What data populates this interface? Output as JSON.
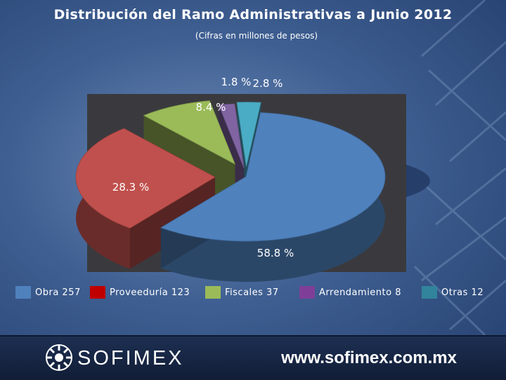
{
  "title": "Distribución del Ramo Administrativas  a Junio 2012",
  "subtitle": "(Cifras en millones de pesos)",
  "chart_data": {
    "type": "pie",
    "title": "Distribución del Ramo Administrativas  a Junio 2012",
    "subtitle": "(Cifras en millones de pesos)",
    "series": [
      {
        "name": "Obra",
        "value": 257,
        "percent_label": "58.8 %",
        "color": "#4f81bd"
      },
      {
        "name": "Proveeduría",
        "value": 123,
        "percent_label": "28.3 %",
        "color": "#c0504d"
      },
      {
        "name": "Fiscales",
        "value": 37,
        "percent_label": "8.4 %",
        "color": "#9bbb59"
      },
      {
        "name": "Arrendamiento",
        "value": 8,
        "percent_label": "1.8 %",
        "color": "#8064a2"
      },
      {
        "name": "Otras",
        "value": 12,
        "percent_label": "2.8 %",
        "color": "#4bacc6"
      }
    ],
    "legend_position": "bottom",
    "three_d": true,
    "exploded": true
  },
  "legend": [
    {
      "label": "Obra  257"
    },
    {
      "label": "Proveeduría  123"
    },
    {
      "label": "Fiscales  37"
    },
    {
      "label": "Arrendamiento  8"
    },
    {
      "label": "Otras  12"
    }
  ],
  "footer": {
    "brand": "SOFIMEX",
    "url": "www.sofimex.com.mx"
  },
  "colors": {
    "background": "#3f5f92",
    "plot_background": "#3a3a3e",
    "footer": "#1d2f52"
  }
}
